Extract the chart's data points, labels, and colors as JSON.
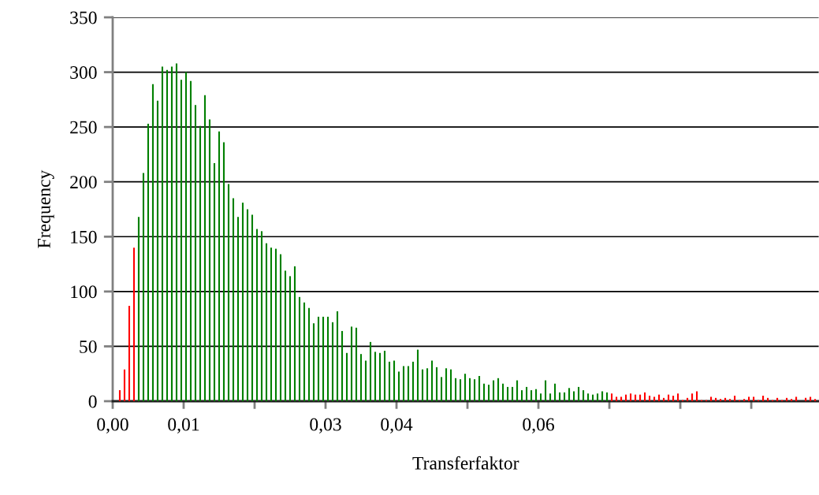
{
  "chart_data": {
    "type": "histogram",
    "xlabel": "Transferfaktor",
    "ylabel": "Frequency",
    "bins": [
      0,
      0.000667,
      0.001333,
      0.002,
      0.002667,
      0.003333,
      0.004,
      0.004667,
      0.005333,
      0.006,
      0.006667,
      0.007333,
      0.008,
      0.008667,
      0.009333,
      0.01,
      0.010667,
      0.011333,
      0.012,
      0.012667,
      0.013333,
      0.014,
      0.014667,
      0.015333,
      0.016,
      0.016667,
      0.017333,
      0.018,
      0.018667,
      0.019333,
      0.02,
      0.020667,
      0.021333,
      0.022,
      0.022667,
      0.023333,
      0.024,
      0.024667,
      0.025333,
      0.026,
      0.026667,
      0.027333,
      0.028,
      0.028667,
      0.029333,
      0.03,
      0.030667,
      0.031333,
      0.032,
      0.032667,
      0.033333,
      0.034,
      0.034667,
      0.035333,
      0.036,
      0.036667,
      0.037333,
      0.038,
      0.038667,
      0.039333,
      0.04,
      0.040667,
      0.041333,
      0.042,
      0.042667,
      0.043333,
      0.044,
      0.044667,
      0.045333,
      0.046,
      0.046667,
      0.047333,
      0.048,
      0.048667,
      0.049333,
      0.05,
      0.050667,
      0.051333,
      0.052,
      0.052667,
      0.053333,
      0.054,
      0.054667,
      0.055333,
      0.056,
      0.056667,
      0.057333,
      0.058,
      0.058667,
      0.059333,
      0.06,
      0.060667,
      0.061333,
      0.062,
      0.062667,
      0.063333,
      0.064,
      0.064667,
      0.065333,
      0.066,
      0.066667,
      0.067333,
      0.068,
      0.068667,
      0.069333,
      0.07,
      0.070667,
      0.071333,
      0.072,
      0.072667,
      0.073333,
      0.074,
      0.074667,
      0.075333,
      0.076,
      0.076667,
      0.077333,
      0.078,
      0.078667,
      0.079333,
      0.08,
      0.080667,
      0.081333,
      0.082,
      0.082667,
      0.083333,
      0.084,
      0.084667,
      0.085333,
      0.086,
      0.086667,
      0.087333,
      0.088,
      0.088667,
      0.089333,
      0.09,
      0.090667,
      0.091333,
      0.092,
      0.092667,
      0.093333,
      0.094,
      0.094667,
      0.095333,
      0.096,
      0.096667,
      0.097333,
      0.098,
      0.098667,
      0.099333
    ],
    "values": [
      0,
      10,
      29,
      87,
      140,
      168,
      208,
      253,
      289,
      274,
      305,
      302,
      305,
      308,
      293,
      300,
      292,
      270,
      251,
      279,
      257,
      217,
      246,
      236,
      198,
      185,
      168,
      181,
      175,
      170,
      157,
      155,
      144,
      140,
      139,
      134,
      119,
      114,
      123,
      95,
      90,
      85,
      71,
      77,
      77,
      77,
      72,
      82,
      64,
      44,
      68,
      67,
      43,
      37,
      54,
      45,
      44,
      46,
      36,
      37,
      27,
      32,
      32,
      36,
      47,
      29,
      30,
      37,
      31,
      22,
      30,
      29,
      21,
      20,
      25,
      21,
      20,
      23,
      16,
      15,
      19,
      21,
      16,
      13,
      13,
      19,
      10,
      13,
      10,
      11,
      7,
      19,
      7,
      16,
      8,
      8,
      12,
      9,
      13,
      10,
      7,
      6,
      7,
      9,
      8,
      7,
      4,
      4,
      6,
      7,
      6,
      6,
      8,
      5,
      4,
      6,
      3,
      6,
      5,
      7,
      1,
      3,
      7,
      9,
      1,
      1,
      4,
      3,
      2,
      3,
      2,
      5,
      1,
      2,
      4,
      4,
      1,
      5,
      3,
      1,
      3,
      1,
      3,
      2,
      4,
      0,
      3,
      4,
      2
    ],
    "colors": [
      "#ff0000",
      "#ff0000",
      "#ff0000",
      "#ff0000",
      "#ff0000",
      "#008000",
      "#008000",
      "#008000",
      "#008000",
      "#008000",
      "#008000",
      "#008000",
      "#008000",
      "#008000",
      "#008000",
      "#008000",
      "#008000",
      "#008000",
      "#008000",
      "#008000",
      "#008000",
      "#008000",
      "#008000",
      "#008000",
      "#008000",
      "#008000",
      "#008000",
      "#008000",
      "#008000",
      "#008000",
      "#008000",
      "#008000",
      "#008000",
      "#008000",
      "#008000",
      "#008000",
      "#008000",
      "#008000",
      "#008000",
      "#008000",
      "#008000",
      "#008000",
      "#008000",
      "#008000",
      "#008000",
      "#008000",
      "#008000",
      "#008000",
      "#008000",
      "#008000",
      "#008000",
      "#008000",
      "#008000",
      "#008000",
      "#008000",
      "#008000",
      "#008000",
      "#008000",
      "#008000",
      "#008000",
      "#008000",
      "#008000",
      "#008000",
      "#008000",
      "#008000",
      "#008000",
      "#008000",
      "#008000",
      "#008000",
      "#008000",
      "#008000",
      "#008000",
      "#008000",
      "#008000",
      "#008000",
      "#008000",
      "#008000",
      "#008000",
      "#008000",
      "#008000",
      "#008000",
      "#008000",
      "#008000",
      "#008000",
      "#008000",
      "#008000",
      "#008000",
      "#008000",
      "#008000",
      "#008000",
      "#008000",
      "#008000",
      "#008000",
      "#008000",
      "#008000",
      "#008000",
      "#008000",
      "#008000",
      "#008000",
      "#008000",
      "#008000",
      "#008000",
      "#008000",
      "#008000",
      "#008000",
      "#ff0000",
      "#ff0000",
      "#ff0000",
      "#ff0000",
      "#ff0000",
      "#ff0000",
      "#ff0000",
      "#ff0000",
      "#ff0000",
      "#ff0000",
      "#ff0000",
      "#ff0000",
      "#ff0000",
      "#ff0000",
      "#ff0000",
      "#ff0000",
      "#ff0000",
      "#ff0000",
      "#ff0000",
      "#ff0000",
      "#ff0000",
      "#ff0000",
      "#ff0000",
      "#ff0000",
      "#ff0000",
      "#ff0000",
      "#ff0000",
      "#ff0000",
      "#ff0000",
      "#ff0000",
      "#ff0000",
      "#ff0000",
      "#ff0000",
      "#ff0000",
      "#ff0000",
      "#ff0000",
      "#ff0000",
      "#ff0000",
      "#ff0000",
      "#ff0000",
      "#ff0000",
      "#ff0000",
      "#ff0000",
      "#ff0000"
    ],
    "xlim": [
      0,
      0.0995
    ],
    "ylim": [
      0,
      350
    ],
    "xticks": [
      {
        "value": 0,
        "label": "0,00"
      },
      {
        "value": 0.01,
        "label": "0,01"
      },
      {
        "value": 0.02,
        "label": null
      },
      {
        "value": 0.03,
        "label": "0,03"
      },
      {
        "value": 0.04,
        "label": "0,04"
      },
      {
        "value": 0.05,
        "label": null
      },
      {
        "value": 0.06,
        "label": "0,06"
      },
      {
        "value": 0.07,
        "label": null
      },
      {
        "value": 0.08,
        "label": null
      },
      {
        "value": 0.09,
        "label": null
      }
    ],
    "yticks": [
      0,
      50,
      100,
      150,
      200,
      250,
      300,
      350
    ],
    "grid": "y",
    "legend": false
  }
}
